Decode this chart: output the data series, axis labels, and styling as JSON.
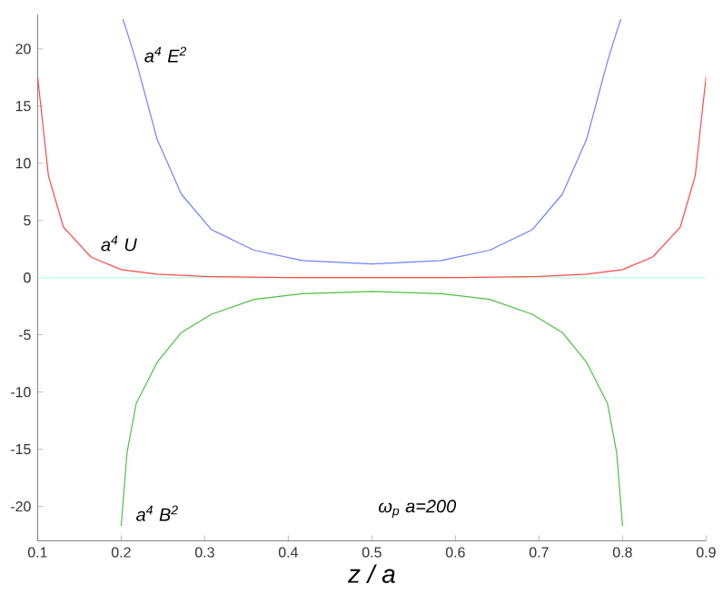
{
  "chart_data": {
    "type": "line",
    "xlabel": "z / a",
    "xlim": [
      0.1,
      0.9
    ],
    "ylim": [
      -23,
      23
    ],
    "xticks": [
      0.1,
      0.2,
      0.3,
      0.4,
      0.5,
      0.6,
      0.7,
      0.8,
      0.9
    ],
    "yticks": [
      -20,
      -15,
      -10,
      -5,
      0,
      5,
      10,
      15,
      20
    ],
    "grid": false,
    "marker": "none",
    "line_style": "solid",
    "series": [
      {
        "name": "a$^{4}$ E$^{2}$",
        "color": "#7080ff",
        "x": [
          0.202,
          0.207,
          0.218,
          0.243,
          0.272,
          0.308,
          0.359,
          0.417,
          0.5,
          0.583,
          0.641,
          0.692,
          0.728,
          0.757,
          0.782,
          0.793,
          0.798
        ],
        "values": [
          22.6,
          21.5,
          18.9,
          12.1,
          7.3,
          4.2,
          2.4,
          1.5,
          1.2,
          1.5,
          2.4,
          4.2,
          7.3,
          12.1,
          18.9,
          21.5,
          22.6
        ]
      },
      {
        "name": "a$^{4}$ U",
        "color": "#ff4a4a",
        "x": [
          0.1,
          0.113,
          0.131,
          0.164,
          0.2,
          0.243,
          0.3,
          0.4,
          0.5,
          0.6,
          0.7,
          0.757,
          0.8,
          0.836,
          0.869,
          0.887,
          0.9
        ],
        "values": [
          17.6,
          8.9,
          4.4,
          1.8,
          0.7,
          0.3,
          0.1,
          0,
          0,
          0,
          0.1,
          0.3,
          0.7,
          1.8,
          4.4,
          8.9,
          17.6
        ]
      },
      {
        "name": "a$^{4}$ B$^{2}$",
        "color": "#4cc040",
        "x": [
          0.2,
          0.207,
          0.218,
          0.243,
          0.272,
          0.308,
          0.359,
          0.417,
          0.5,
          0.583,
          0.641,
          0.692,
          0.728,
          0.757,
          0.782,
          0.793,
          0.8
        ],
        "values": [
          -21.7,
          -15.3,
          -11,
          -7.4,
          -4.8,
          -3.2,
          -1.9,
          -1.4,
          -1.2,
          -1.4,
          -1.9,
          -3.2,
          -4.8,
          -7.4,
          -11,
          -15.3,
          -21.7
        ]
      }
    ],
    "ref_lines": [
      {
        "axis": "y",
        "value": 0,
        "color": "#c0ffe8"
      }
    ],
    "annotations": [
      "ω$_{p}$ a=200"
    ]
  }
}
